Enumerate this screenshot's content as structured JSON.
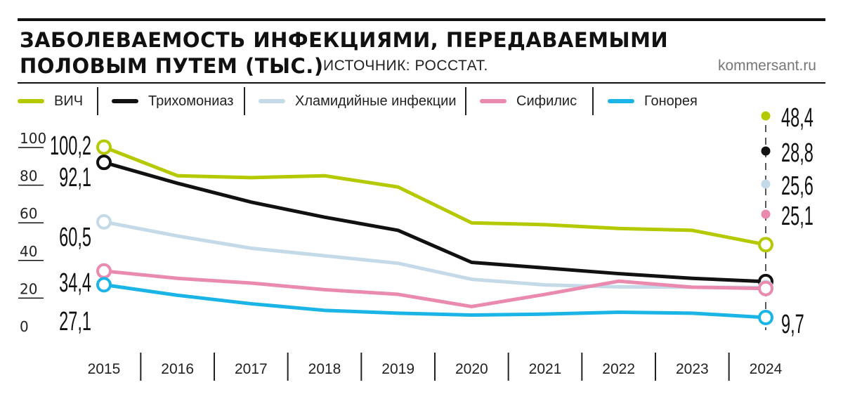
{
  "header": {
    "title_line1": "ЗАБОЛЕВАЕМОСТЬ ИНФЕКЦИЯМИ, ПЕРЕДАВАЕМЫМИ",
    "title_line2": "ПОЛОВЫМ ПУТЕМ (ТЫС.)",
    "source": "ИСТОЧНИК: РОССТАТ.",
    "site": "kommersant.ru"
  },
  "chart_data": {
    "type": "line",
    "title": "ЗАБОЛЕВАЕМОСТЬ ИНФЕКЦИЯМИ, ПЕРЕДАВАЕМЫМИ ПОЛОВЫМ ПУТЕМ (ТЫС.)",
    "categories": [
      "2015",
      "2016",
      "2017",
      "2018",
      "2019",
      "2020",
      "2021",
      "2022",
      "2023",
      "2024"
    ],
    "ylim": [
      0,
      110
    ],
    "yticks": [
      "100",
      "80",
      "60",
      "40",
      "20",
      "0"
    ],
    "ytick_values": [
      100,
      80,
      60,
      40,
      20,
      0
    ],
    "grid": false,
    "legend_position": "top",
    "series": [
      {
        "name": "ВИЧ",
        "color": "#b5c900",
        "values": [
          100.2,
          85,
          84,
          85,
          79,
          60,
          59,
          57,
          56,
          48.4
        ],
        "start_label": "100,2",
        "end_label": "48,4"
      },
      {
        "name": "Трихомониаз",
        "color": "#111111",
        "values": [
          92.1,
          81,
          71,
          63,
          56,
          39,
          36,
          33,
          30.5,
          28.8
        ],
        "start_label": "92,1",
        "end_label": "28,8"
      },
      {
        "name": "Хламидийные инфекции",
        "color": "#c5dae8",
        "values": [
          60.5,
          53,
          46.5,
          42.5,
          38.5,
          30,
          27,
          26,
          25.8,
          25.6
        ],
        "start_label": "60,5",
        "end_label": "25,6"
      },
      {
        "name": "Сифилис",
        "color": "#e98aae",
        "values": [
          34.4,
          30.5,
          28,
          24.5,
          22,
          15.5,
          22,
          29,
          25.8,
          25.1
        ],
        "start_label": "34,4",
        "end_label": "25,1"
      },
      {
        "name": "Гонорея",
        "color": "#1ab4e6",
        "values": [
          27.1,
          21.5,
          17,
          13.5,
          12,
          11,
          11.5,
          12.5,
          12,
          9.7
        ],
        "start_label": "27,1",
        "end_label": "9,7"
      }
    ]
  }
}
